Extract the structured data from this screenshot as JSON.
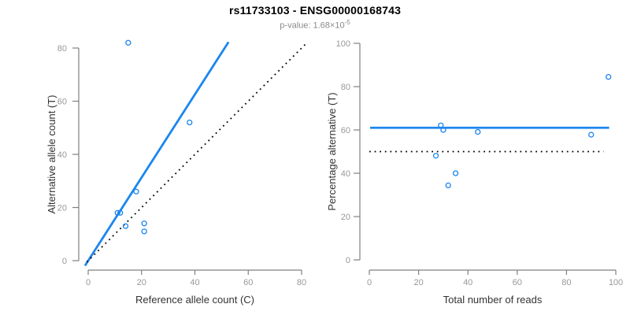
{
  "figure": {
    "title": "rs11733103 - ENSG00000168743",
    "p_value": {
      "prefix": "p-value: 1.68×10",
      "exponent": "-5"
    }
  },
  "colors": {
    "accent_blue": "#1C86EE",
    "axis_gray": "#808080",
    "tick_label_gray": "#999999",
    "axis_title_dark": "#333333",
    "subtitle_gray": "#8A8A8A"
  },
  "chart_data": [
    {
      "type": "scatter",
      "name": "allele-counts-scatter",
      "xlabel": "Reference allele count (C)",
      "ylabel": "Alternative allele count (T)",
      "xlim": [
        0,
        80
      ],
      "ylim": [
        0,
        80
      ],
      "xticks": [
        0,
        20,
        40,
        60,
        80
      ],
      "yticks": [
        0,
        20,
        40,
        60,
        80
      ],
      "grid": false,
      "point_color": "#1C86EE",
      "point_radius": 3,
      "points": [
        [
          15,
          82
        ],
        [
          38,
          52
        ],
        [
          18,
          26
        ],
        [
          11,
          18
        ],
        [
          12,
          18
        ],
        [
          14,
          13
        ],
        [
          21,
          14
        ],
        [
          21,
          11
        ]
      ],
      "lines": [
        {
          "name": "fitted-line",
          "description": "fitted proportion line y = 1.564x",
          "style": "solid",
          "color": "#1C86EE",
          "width": 2.8,
          "from": [
            -1.2,
            -1.88
          ],
          "to": [
            52.6,
            82.26
          ]
        },
        {
          "name": "identity-line",
          "description": "y = x reference",
          "style": "dotted",
          "color": "#000000",
          "width": 1.8,
          "from": [
            -0.5,
            -0.5
          ],
          "to": [
            81.5,
            81.5
          ]
        }
      ]
    },
    {
      "type": "scatter",
      "name": "percentage-vs-coverage-scatter",
      "xlabel": "Total number of reads",
      "ylabel": "Percentage alternative (T)",
      "xlim": [
        0,
        100
      ],
      "ylim": [
        0,
        100
      ],
      "xticks": [
        0,
        20,
        40,
        60,
        80,
        100
      ],
      "yticks": [
        0,
        20,
        40,
        60,
        80,
        100
      ],
      "grid": false,
      "point_color": "#1C86EE",
      "point_radius": 3,
      "points": [
        [
          29,
          62.1
        ],
        [
          30,
          60
        ],
        [
          44,
          59.1
        ],
        [
          90,
          57.8
        ],
        [
          97,
          84.5
        ],
        [
          27,
          48.1
        ],
        [
          35,
          40
        ],
        [
          32,
          34.4
        ]
      ],
      "lines": [
        {
          "name": "fitted-mean-line",
          "description": "fitted mean percentage 61%",
          "style": "solid",
          "color": "#1C86EE",
          "width": 2.8,
          "from": [
            0.3,
            61
          ],
          "to": [
            97.3,
            61
          ]
        },
        {
          "name": "reference-line-50",
          "description": "50% reference",
          "style": "dotted",
          "color": "#000000",
          "width": 1.8,
          "from": [
            0,
            50
          ],
          "to": [
            95,
            50
          ]
        }
      ]
    }
  ]
}
